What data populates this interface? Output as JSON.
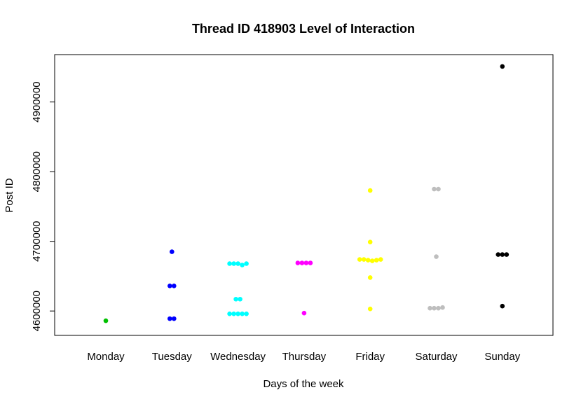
{
  "chart_data": {
    "type": "scatter",
    "title": "Thread ID 418903 Level of Interaction",
    "xlabel": "Days of the week",
    "ylabel": "Post ID",
    "categories": [
      "Monday",
      "Tuesday",
      "Wednesday",
      "Thursday",
      "Friday",
      "Saturday",
      "Sunday"
    ],
    "ylim": [
      4565000,
      4968000
    ],
    "yticks": [
      4600000,
      4700000,
      4800000,
      4900000
    ],
    "ytick_labels": [
      "4600000",
      "4700000",
      "4800000",
      "4900000"
    ],
    "grid": false,
    "legend": "none",
    "series": [
      {
        "category": "Monday",
        "color": "#00c000",
        "points": [
          [
            0,
            4586000
          ]
        ]
      },
      {
        "category": "Tuesday",
        "color": "#0000ff",
        "points": [
          [
            0,
            4685000
          ],
          [
            -0.5,
            4636000
          ],
          [
            0.5,
            4636000
          ],
          [
            -0.5,
            4589000
          ],
          [
            0.5,
            4589000
          ]
        ]
      },
      {
        "category": "Wednesday",
        "color": "#00ffff",
        "points": [
          [
            -2,
            4668000
          ],
          [
            -1,
            4668000
          ],
          [
            0,
            4668000
          ],
          [
            1,
            4666000
          ],
          [
            2,
            4668000
          ],
          [
            -0.5,
            4617000
          ],
          [
            0.5,
            4617000
          ],
          [
            -2,
            4596000
          ],
          [
            -1,
            4596000
          ],
          [
            0,
            4596000
          ],
          [
            1,
            4596000
          ],
          [
            2,
            4596000
          ]
        ]
      },
      {
        "category": "Thursday",
        "color": "#ff00ff",
        "points": [
          [
            -1.5,
            4669000
          ],
          [
            -0.5,
            4669000
          ],
          [
            0.5,
            4669000
          ],
          [
            1.5,
            4669000
          ],
          [
            0,
            4597000
          ]
        ]
      },
      {
        "category": "Friday",
        "color": "#ffff00",
        "points": [
          [
            0,
            4773000
          ],
          [
            0,
            4699000
          ],
          [
            -2.5,
            4674000
          ],
          [
            -1.5,
            4674000
          ],
          [
            -0.5,
            4673000
          ],
          [
            0.5,
            4672000
          ],
          [
            1.5,
            4673000
          ],
          [
            2.5,
            4674000
          ],
          [
            0,
            4648000
          ],
          [
            0,
            4603000
          ]
        ]
      },
      {
        "category": "Saturday",
        "color": "#bebebe",
        "points": [
          [
            -0.5,
            4775000
          ],
          [
            0.5,
            4775000
          ],
          [
            0,
            4678000
          ],
          [
            -1.5,
            4604000
          ],
          [
            -0.5,
            4604000
          ],
          [
            0.5,
            4604000
          ],
          [
            1.5,
            4605000
          ]
        ]
      },
      {
        "category": "Sunday",
        "color": "#000000",
        "points": [
          [
            0,
            4951000
          ],
          [
            -1,
            4681000
          ],
          [
            0,
            4681000
          ],
          [
            1,
            4681000
          ],
          [
            0,
            4607000
          ]
        ]
      }
    ]
  }
}
